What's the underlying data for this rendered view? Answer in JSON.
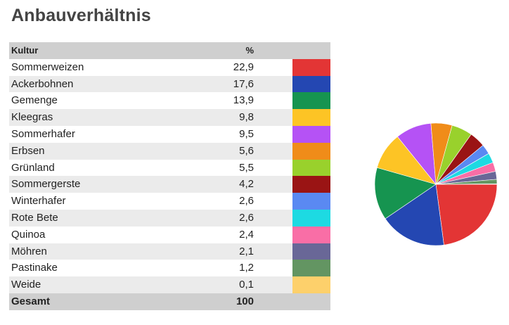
{
  "title": "Anbauverhältnis",
  "table": {
    "header": {
      "name": "Kultur",
      "value": "%"
    },
    "total": {
      "label": "Gesamt",
      "value": "100"
    }
  },
  "chart_data": {
    "type": "pie",
    "categories": [
      "Sommerweizen",
      "Ackerbohnen",
      "Gemenge",
      "Kleegras",
      "Sommerhafer",
      "Erbsen",
      "Grünland",
      "Sommergerste",
      "Winterhafer",
      "Rote Bete",
      "Quinoa",
      "Möhren",
      "Pastinake",
      "Weide"
    ],
    "values": [
      22.9,
      17.6,
      13.9,
      9.8,
      9.5,
      5.6,
      5.5,
      4.2,
      2.6,
      2.6,
      2.4,
      2.1,
      1.2,
      0.1
    ],
    "labels": [
      "22,9",
      "17,6",
      "13,9",
      "9,8",
      "9,5",
      "5,6",
      "5,5",
      "4,2",
      "2,6",
      "2,6",
      "2,4",
      "2,1",
      "1,2",
      "0,1"
    ],
    "colors": [
      "#e33535",
      "#2447b2",
      "#169450",
      "#fdc425",
      "#b552f5",
      "#f08c19",
      "#99d12c",
      "#9a1414",
      "#5a89f2",
      "#1ddae2",
      "#f96ea6",
      "#696797",
      "#639562",
      "#fdd06b"
    ]
  }
}
